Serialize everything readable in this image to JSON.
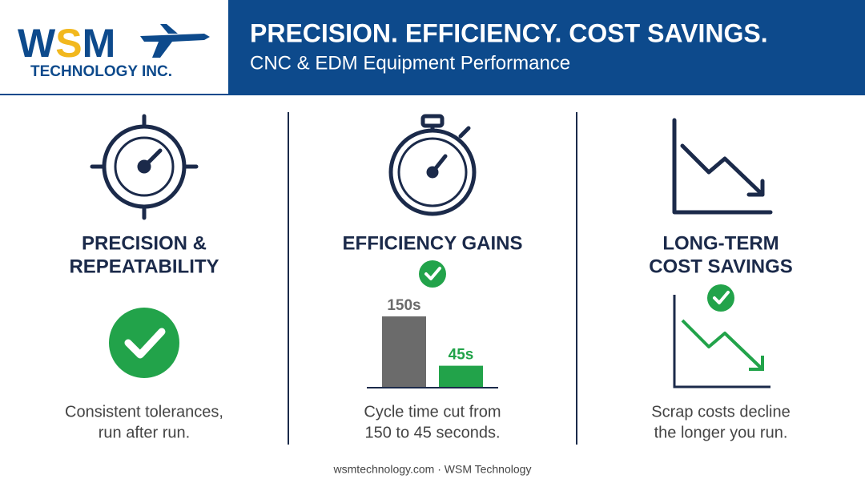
{
  "header": {
    "logo": [
      "W",
      "S",
      "M"
    ],
    "logo_sub": "TECHNOLOGY INC.",
    "title": "PRECISION. EFFICIENCY. COST SAVINGS.",
    "subtitle": "CNC & EDM Equipment Performance"
  },
  "columns": [
    {
      "title": [
        "PRECISION &",
        "REPEATABILITY"
      ],
      "caption": [
        "Consistent tolerances,",
        "run after run."
      ]
    },
    {
      "title": [
        "EFFICIENCY GAINS"
      ],
      "caption": [
        "Cycle time cut from",
        "150 to 45 seconds."
      ]
    },
    {
      "title": [
        "LONG-TERM",
        "COST SAVINGS"
      ],
      "caption": [
        "Scrap costs decline",
        "the longer you run."
      ]
    }
  ],
  "chart_data": {
    "type": "bar",
    "values": [
      150,
      45
    ],
    "value_labels": [
      "150s",
      "45s"
    ],
    "colors": [
      "#6b6b6b",
      "#22a34a"
    ]
  },
  "footer": "wsmtechnology.com · WSM Technology"
}
